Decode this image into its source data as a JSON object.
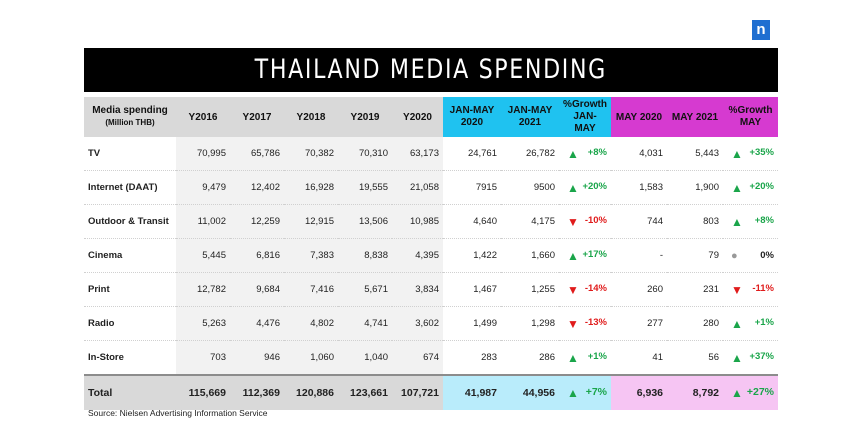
{
  "logo": "n",
  "title": "THAILAND MEDIA SPENDING",
  "header": {
    "label_line1": "Media spending",
    "label_line2": "(Million THB)",
    "years": [
      "Y2016",
      "Y2017",
      "Y2018",
      "Y2019",
      "Y2020"
    ],
    "jan_2020": "JAN-MAY 2020",
    "jan_2021": "JAN-MAY 2021",
    "jan_growth": "%Growth JAN-MAY",
    "may_2020": "MAY 2020",
    "may_2021": "MAY 2021",
    "may_growth": "%Growth MAY"
  },
  "rows": [
    {
      "name": "TV",
      "years": [
        "70,995",
        "65,786",
        "70,382",
        "70,310",
        "63,173"
      ],
      "jan2020": "24,761",
      "jan2021": "26,782",
      "jan_growth": "+8%",
      "jan_dir": "up",
      "may2020": "4,031",
      "may2021": "5,443",
      "may_growth": "+35%",
      "may_dir": "up"
    },
    {
      "name": "Internet (DAAT)",
      "years": [
        "9,479",
        "12,402",
        "16,928",
        "19,555",
        "21,058"
      ],
      "jan2020": "7915",
      "jan2021": "9500",
      "jan_growth": "+20%",
      "jan_dir": "up",
      "may2020": "1,583",
      "may2021": "1,900",
      "may_growth": "+20%",
      "may_dir": "up"
    },
    {
      "name": "Outdoor & Transit",
      "years": [
        "11,002",
        "12,259",
        "12,915",
        "13,506",
        "10,985"
      ],
      "jan2020": "4,640",
      "jan2021": "4,175",
      "jan_growth": "-10%",
      "jan_dir": "down",
      "may2020": "744",
      "may2021": "803",
      "may_growth": "+8%",
      "may_dir": "up"
    },
    {
      "name": "Cinema",
      "years": [
        "5,445",
        "6,816",
        "7,383",
        "8,838",
        "4,395"
      ],
      "jan2020": "1,422",
      "jan2021": "1,660",
      "jan_growth": "+17%",
      "jan_dir": "up",
      "may2020": "-",
      "may2021": "79",
      "may_growth": "0%",
      "may_dir": "flat"
    },
    {
      "name": "Print",
      "years": [
        "12,782",
        "9,684",
        "7,416",
        "5,671",
        "3,834"
      ],
      "jan2020": "1,467",
      "jan2021": "1,255",
      "jan_growth": "-14%",
      "jan_dir": "down",
      "may2020": "260",
      "may2021": "231",
      "may_growth": "-11%",
      "may_dir": "down"
    },
    {
      "name": "Radio",
      "years": [
        "5,263",
        "4,476",
        "4,802",
        "4,741",
        "3,602"
      ],
      "jan2020": "1,499",
      "jan2021": "1,298",
      "jan_growth": "-13%",
      "jan_dir": "down",
      "may2020": "277",
      "may2021": "280",
      "may_growth": "+1%",
      "may_dir": "up"
    },
    {
      "name": "In-Store",
      "years": [
        "703",
        "946",
        "1,060",
        "1,040",
        "674"
      ],
      "jan2020": "283",
      "jan2021": "286",
      "jan_growth": "+1%",
      "jan_dir": "up",
      "may2020": "41",
      "may2021": "56",
      "may_growth": "+37%",
      "may_dir": "up"
    }
  ],
  "total": {
    "name": "Total",
    "years": [
      "115,669",
      "112,369",
      "120,886",
      "123,661",
      "107,721"
    ],
    "jan2020": "41,987",
    "jan2021": "44,956",
    "jan_growth": "+7%",
    "jan_dir": "up",
    "may2020": "6,936",
    "may2021": "8,792",
    "may_growth": "+27%",
    "may_dir": "up"
  },
  "colors": {
    "jan_header": "#1fc2f0",
    "may_header": "#d63ad0",
    "up": "#1aa54a",
    "down": "#e01b1b",
    "flat": "#999999"
  },
  "icons": {
    "up": "arrow-up-icon",
    "down": "arrow-down-icon",
    "flat": "circle-dot-icon"
  },
  "source": "Source: Nielsen Advertising Information Service"
}
